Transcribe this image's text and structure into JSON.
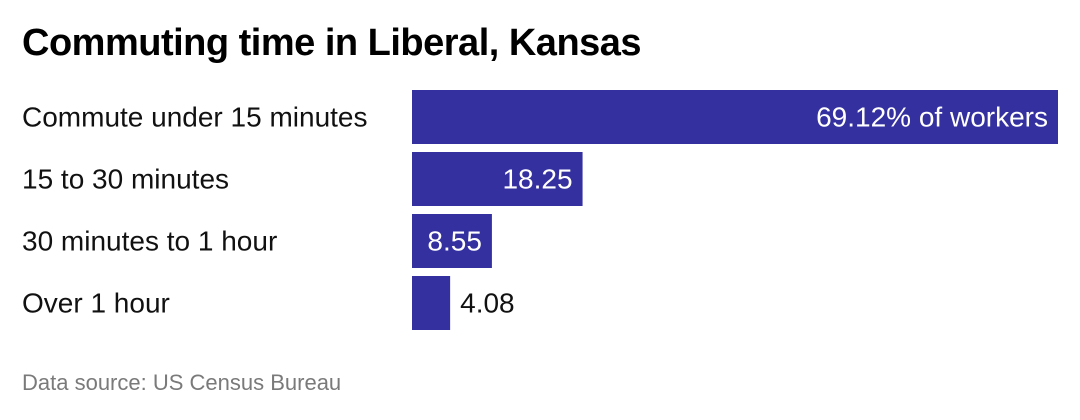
{
  "chart_data": {
    "type": "bar",
    "orientation": "horizontal",
    "title": "Commuting time in Liberal, Kansas",
    "categories": [
      "Commute under 15 minutes",
      "15 to 30 minutes",
      "30 minutes to 1 hour",
      "Over 1 hour"
    ],
    "values": [
      69.12,
      18.25,
      8.55,
      4.08
    ],
    "value_labels": [
      "69.12% of workers",
      "18.25",
      "8.55",
      "4.08"
    ],
    "unit": "% of workers",
    "xlim": [
      0,
      69.12
    ],
    "grid": false,
    "legend": "none",
    "bar_color": "#3430a0",
    "source": "Data source: US Census Bureau"
  }
}
